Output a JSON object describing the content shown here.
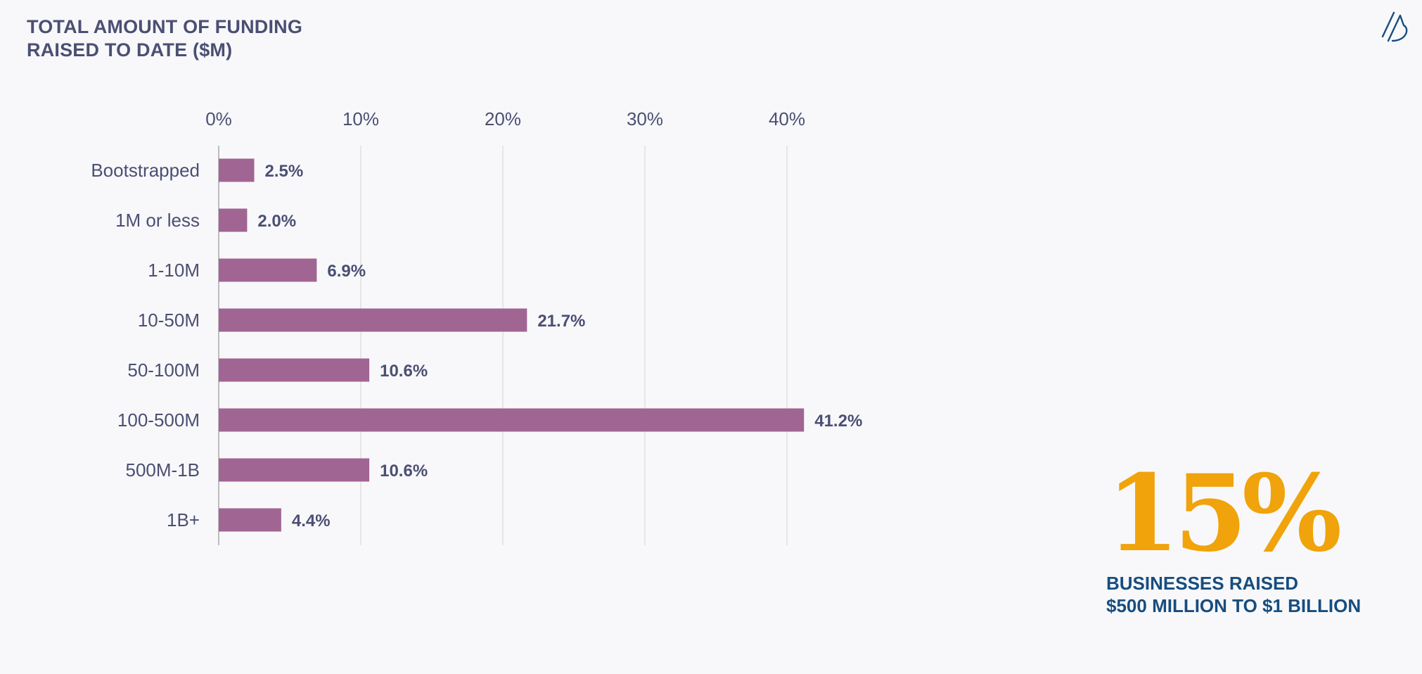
{
  "title": {
    "line1": "TOTAL AMOUNT OF FUNDING",
    "line2": "RAISED TO DATE ($M)"
  },
  "colors": {
    "bar": "#a06593",
    "grid": "#d4d4d4",
    "text": "#4b4f73",
    "accent_stat": "#f0a30a",
    "accent_caption": "#174d7f",
    "logo": "#174d7f"
  },
  "logo_icon": "slash-b-logo-icon",
  "chart_data": {
    "type": "bar",
    "orientation": "horizontal",
    "title": "TOTAL AMOUNT OF FUNDING RAISED TO DATE ($M)",
    "categories": [
      "Bootstrapped",
      "1M or less",
      "1-10M",
      "10-50M",
      "50-100M",
      "100-500M",
      "500M-1B",
      "1B+"
    ],
    "values": [
      2.5,
      2.0,
      6.9,
      21.7,
      10.6,
      41.2,
      10.6,
      4.4
    ],
    "value_labels": [
      "2.5%",
      "2.0%",
      "6.9%",
      "21.7%",
      "10.6%",
      "41.2%",
      "10.6%",
      "4.4%"
    ],
    "unit": "%",
    "xlim": [
      0,
      40
    ],
    "ticks": [
      0,
      10,
      20,
      30,
      40
    ],
    "tick_labels": [
      "0%",
      "10%",
      "20%",
      "30%",
      "40%"
    ],
    "xlabel": "",
    "ylabel": "",
    "grid": true,
    "axis_position": "top",
    "legend": false
  },
  "callout": {
    "stat": "15%",
    "caption_line1": "BUSINESSES RAISED",
    "caption_line2": "$500 MILLION TO $1 BILLION"
  }
}
